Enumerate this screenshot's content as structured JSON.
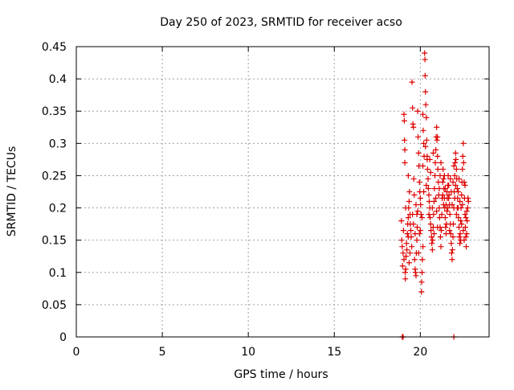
{
  "chart_data": {
    "type": "scatter",
    "title": "Day 250 of 2023, SRMTID for receiver acso",
    "xlabel": "GPS time / hours",
    "ylabel": "SRMTID / TECUs",
    "xlim": [
      0,
      24
    ],
    "ylim": [
      0,
      0.45
    ],
    "xticks": [
      0,
      5,
      10,
      15,
      20
    ],
    "yticks": [
      0,
      0.05,
      0.1,
      0.15,
      0.2,
      0.25,
      0.3,
      0.35,
      0.4,
      0.45
    ],
    "xtick_labels": [
      "0",
      "5",
      "10",
      "15",
      "20"
    ],
    "ytick_labels": [
      "0",
      "0.05",
      "0.1",
      "0.15",
      "0.2",
      "0.25",
      "0.3",
      "0.35",
      "0.4",
      "0.45"
    ],
    "grid": true,
    "marker": "plus",
    "marker_color": "#dd0000",
    "series": [
      {
        "points": [
          [
            18.95,
            0.0
          ],
          [
            19.0,
            0.0
          ],
          [
            21.95,
            0.0
          ],
          [
            18.9,
            0.18
          ],
          [
            18.92,
            0.15
          ],
          [
            18.95,
            0.14
          ],
          [
            18.97,
            0.11
          ],
          [
            19.0,
            0.13
          ],
          [
            19.02,
            0.165
          ],
          [
            19.05,
            0.12
          ],
          [
            19.05,
            0.345
          ],
          [
            19.07,
            0.335
          ],
          [
            19.08,
            0.305
          ],
          [
            19.1,
            0.29
          ],
          [
            19.1,
            0.27
          ],
          [
            19.12,
            0.1
          ],
          [
            19.13,
            0.09
          ],
          [
            19.15,
            0.105
          ],
          [
            19.17,
            0.125
          ],
          [
            19.2,
            0.145
          ],
          [
            19.22,
            0.135
          ],
          [
            19.25,
            0.16
          ],
          [
            19.27,
            0.175
          ],
          [
            19.3,
            0.185
          ],
          [
            19.3,
            0.25
          ],
          [
            19.32,
            0.2
          ],
          [
            19.35,
            0.21
          ],
          [
            19.37,
            0.225
          ],
          [
            19.4,
            0.19
          ],
          [
            19.42,
            0.175
          ],
          [
            19.45,
            0.165
          ],
          [
            19.47,
            0.155
          ],
          [
            19.5,
            0.14
          ],
          [
            19.52,
            0.395
          ],
          [
            19.55,
            0.355
          ],
          [
            19.57,
            0.33
          ],
          [
            19.6,
            0.325
          ],
          [
            19.62,
            0.245
          ],
          [
            19.65,
            0.22
          ],
          [
            19.67,
            0.12
          ],
          [
            19.7,
            0.105
          ],
          [
            19.72,
            0.1
          ],
          [
            19.75,
            0.095
          ],
          [
            19.77,
            0.13
          ],
          [
            19.8,
            0.15
          ],
          [
            19.82,
            0.17
          ],
          [
            19.85,
            0.195
          ],
          [
            19.85,
            0.35
          ],
          [
            19.87,
            0.31
          ],
          [
            19.9,
            0.285
          ],
          [
            19.92,
            0.265
          ],
          [
            19.95,
            0.24
          ],
          [
            19.97,
            0.225
          ],
          [
            20.0,
            0.215
          ],
          [
            20.02,
            0.205
          ],
          [
            20.05,
            0.19
          ],
          [
            20.07,
            0.07
          ],
          [
            20.08,
            0.085
          ],
          [
            20.1,
            0.1
          ],
          [
            20.12,
            0.12
          ],
          [
            20.15,
            0.14
          ],
          [
            20.15,
            0.345
          ],
          [
            20.17,
            0.32
          ],
          [
            20.2,
            0.3
          ],
          [
            20.22,
            0.28
          ],
          [
            20.25,
            0.44
          ],
          [
            20.27,
            0.43
          ],
          [
            20.28,
            0.405
          ],
          [
            20.3,
            0.38
          ],
          [
            20.32,
            0.36
          ],
          [
            20.35,
            0.34
          ],
          [
            20.37,
            0.305
          ],
          [
            20.4,
            0.28
          ],
          [
            20.42,
            0.26
          ],
          [
            20.45,
            0.245
          ],
          [
            20.47,
            0.23
          ],
          [
            20.5,
            0.22
          ],
          [
            20.52,
            0.21
          ],
          [
            20.55,
            0.2
          ],
          [
            20.57,
            0.185
          ],
          [
            20.6,
            0.175
          ],
          [
            20.62,
            0.165
          ],
          [
            20.65,
            0.155
          ],
          [
            20.67,
            0.145
          ],
          [
            20.7,
            0.135
          ],
          [
            20.72,
            0.15
          ],
          [
            20.75,
            0.17
          ],
          [
            20.77,
            0.19
          ],
          [
            20.8,
            0.21
          ],
          [
            20.82,
            0.23
          ],
          [
            20.85,
            0.25
          ],
          [
            20.87,
            0.27
          ],
          [
            20.9,
            0.29
          ],
          [
            20.92,
            0.31
          ],
          [
            20.95,
            0.325
          ],
          [
            20.97,
            0.305
          ],
          [
            21.0,
            0.28
          ],
          [
            21.02,
            0.26
          ],
          [
            21.05,
            0.24
          ],
          [
            21.07,
            0.22
          ],
          [
            21.1,
            0.2
          ],
          [
            21.12,
            0.185
          ],
          [
            21.15,
            0.17
          ],
          [
            21.17,
            0.155
          ],
          [
            21.2,
            0.14
          ],
          [
            21.22,
            0.165
          ],
          [
            21.25,
            0.19
          ],
          [
            21.27,
            0.215
          ],
          [
            21.3,
            0.24
          ],
          [
            21.32,
            0.26
          ],
          [
            21.35,
            0.245
          ],
          [
            21.37,
            0.23
          ],
          [
            21.4,
            0.215
          ],
          [
            21.42,
            0.2
          ],
          [
            21.45,
            0.185
          ],
          [
            21.47,
            0.17
          ],
          [
            21.5,
            0.16
          ],
          [
            21.52,
            0.175
          ],
          [
            21.55,
            0.195
          ],
          [
            21.57,
            0.215
          ],
          [
            21.6,
            0.235
          ],
          [
            21.62,
            0.25
          ],
          [
            21.65,
            0.235
          ],
          [
            21.67,
            0.22
          ],
          [
            21.7,
            0.205
          ],
          [
            21.72,
            0.19
          ],
          [
            21.75,
            0.175
          ],
          [
            21.77,
            0.16
          ],
          [
            21.8,
            0.145
          ],
          [
            21.82,
            0.13
          ],
          [
            21.85,
            0.12
          ],
          [
            21.87,
            0.135
          ],
          [
            21.9,
            0.155
          ],
          [
            21.92,
            0.175
          ],
          [
            21.95,
            0.2
          ],
          [
            21.97,
            0.225
          ],
          [
            22.0,
            0.25
          ],
          [
            22.02,
            0.27
          ],
          [
            22.05,
            0.285
          ],
          [
            22.07,
            0.275
          ],
          [
            22.1,
            0.26
          ],
          [
            22.12,
            0.245
          ],
          [
            22.15,
            0.23
          ],
          [
            22.17,
            0.215
          ],
          [
            22.2,
            0.2
          ],
          [
            22.22,
            0.185
          ],
          [
            22.25,
            0.17
          ],
          [
            22.27,
            0.155
          ],
          [
            22.3,
            0.145
          ],
          [
            22.32,
            0.16
          ],
          [
            22.35,
            0.18
          ],
          [
            22.37,
            0.2
          ],
          [
            22.4,
            0.22
          ],
          [
            22.42,
            0.24
          ],
          [
            22.45,
            0.26
          ],
          [
            22.47,
            0.28
          ],
          [
            22.5,
            0.3
          ],
          [
            22.52,
            0.27
          ],
          [
            22.55,
            0.24
          ],
          [
            22.57,
            0.215
          ],
          [
            22.6,
            0.19
          ],
          [
            22.62,
            0.17
          ],
          [
            22.65,
            0.155
          ],
          [
            22.67,
            0.14
          ],
          [
            22.7,
            0.16
          ],
          [
            22.72,
            0.18
          ],
          [
            22.75,
            0.2
          ],
          [
            22.77,
            0.215
          ],
          [
            22.8,
            0.21
          ],
          [
            20.3,
            0.295
          ],
          [
            20.4,
            0.275
          ],
          [
            20.6,
            0.255
          ],
          [
            20.7,
            0.2
          ],
          [
            20.9,
            0.215
          ],
          [
            21.0,
            0.17
          ],
          [
            21.1,
            0.23
          ],
          [
            21.3,
            0.22
          ],
          [
            21.4,
            0.25
          ],
          [
            21.5,
            0.205
          ],
          [
            21.6,
            0.2
          ],
          [
            21.7,
            0.165
          ],
          [
            21.8,
            0.225
          ],
          [
            21.9,
            0.24
          ],
          [
            22.0,
            0.215
          ],
          [
            22.1,
            0.19
          ],
          [
            22.2,
            0.225
          ],
          [
            22.3,
            0.21
          ],
          [
            22.4,
            0.175
          ],
          [
            22.5,
            0.165
          ],
          [
            22.6,
            0.235
          ],
          [
            22.7,
            0.195
          ],
          [
            19.3,
            0.155
          ],
          [
            19.4,
            0.13
          ],
          [
            19.6,
            0.175
          ],
          [
            19.7,
            0.16
          ],
          [
            19.8,
            0.19
          ],
          [
            19.9,
            0.13
          ],
          [
            20.0,
            0.165
          ],
          [
            20.1,
            0.185
          ],
          [
            20.2,
            0.225
          ],
          [
            20.5,
            0.19
          ],
          [
            20.8,
            0.16
          ],
          [
            21.0,
            0.31
          ],
          [
            21.2,
            0.27
          ],
          [
            21.45,
            0.23
          ],
          [
            21.65,
            0.215
          ],
          [
            21.85,
            0.205
          ],
          [
            22.05,
            0.235
          ],
          [
            22.25,
            0.245
          ],
          [
            22.45,
            0.205
          ],
          [
            22.65,
            0.185
          ],
          [
            19.15,
            0.2
          ],
          [
            19.35,
            0.115
          ],
          [
            19.55,
            0.19
          ],
          [
            19.75,
            0.205
          ],
          [
            19.95,
            0.16
          ],
          [
            20.15,
            0.265
          ],
          [
            20.35,
            0.235
          ],
          [
            20.55,
            0.275
          ],
          [
            20.75,
            0.285
          ],
          [
            20.95,
            0.195
          ],
          [
            21.15,
            0.25
          ],
          [
            21.35,
            0.205
          ],
          [
            21.55,
            0.225
          ],
          [
            21.75,
            0.245
          ],
          [
            21.95,
            0.265
          ],
          [
            22.15,
            0.2
          ],
          [
            22.35,
            0.15
          ],
          [
            22.55,
            0.15
          ]
        ]
      }
    ]
  }
}
